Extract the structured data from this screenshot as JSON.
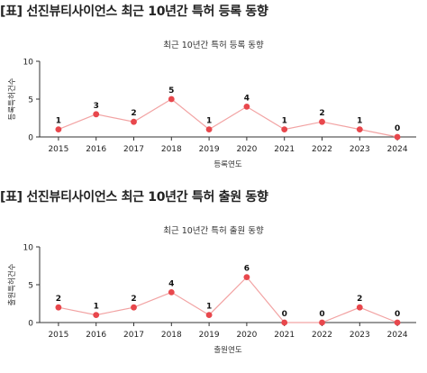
{
  "sections": [
    {
      "title": "[표] 선진뷰티사이언스 최근 10년간 특허 등록 동향"
    },
    {
      "title": "[표] 선진뷰티사이언스 최근 10년간 특허 출원 동향"
    }
  ],
  "chart_data": [
    {
      "type": "line",
      "title": "최근 10년간 특허 등록 동향",
      "xlabel": "등록연도",
      "ylabel": "등록특허건수",
      "categories": [
        "2015",
        "2016",
        "2017",
        "2018",
        "2019",
        "2020",
        "2021",
        "2022",
        "2023",
        "2024"
      ],
      "values": [
        1,
        3,
        2,
        5,
        1,
        4,
        1,
        2,
        1,
        0
      ],
      "ylim": [
        0,
        10
      ],
      "yticks": [
        0,
        5,
        10
      ],
      "grid": false,
      "line_color": "#f2a3a3",
      "marker_color": "#e8474c"
    },
    {
      "type": "line",
      "title": "최근 10년간 특허 출원 동향",
      "xlabel": "출원연도",
      "ylabel": "출원특허건수",
      "categories": [
        "2015",
        "2016",
        "2017",
        "2018",
        "2019",
        "2020",
        "2021",
        "2022",
        "2023",
        "2024"
      ],
      "values": [
        2,
        1,
        2,
        4,
        1,
        6,
        0,
        0,
        2,
        0
      ],
      "ylim": [
        0,
        10
      ],
      "yticks": [
        0,
        5,
        10
      ],
      "grid": false,
      "line_color": "#f2a3a3",
      "marker_color": "#e8474c"
    }
  ]
}
